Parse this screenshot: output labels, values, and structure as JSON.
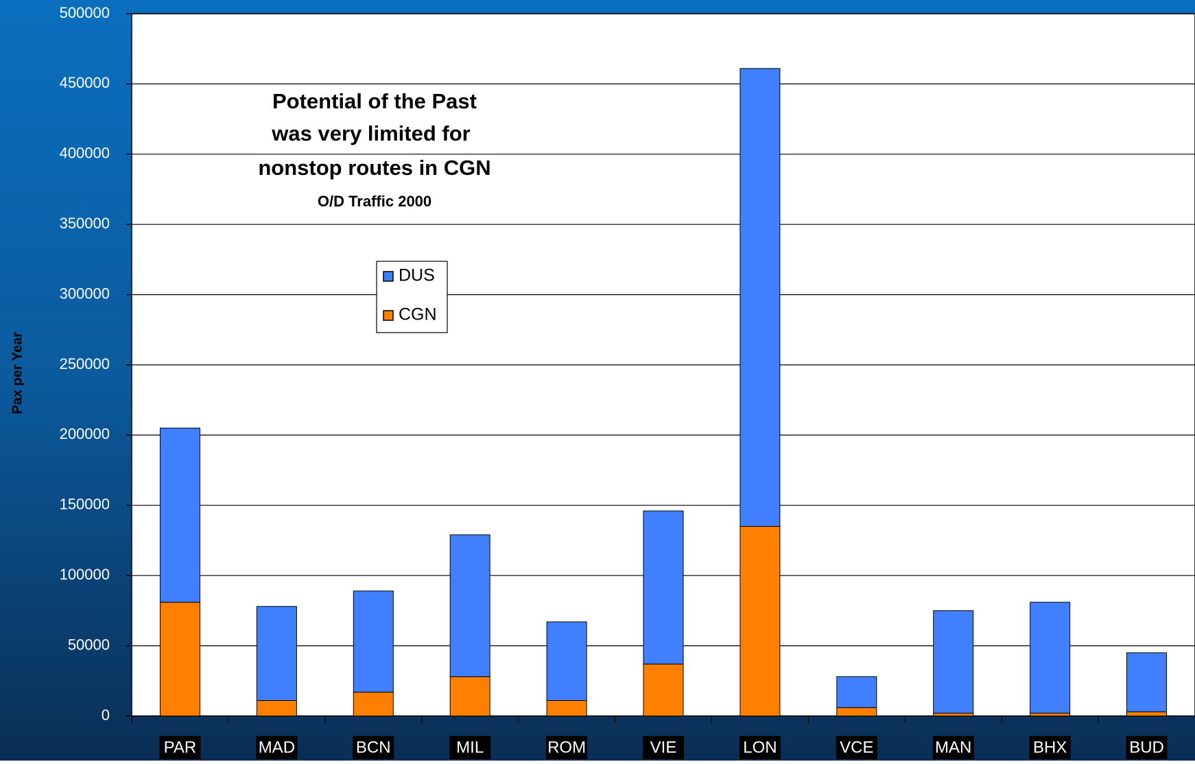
{
  "chart_data": {
    "type": "stacked_bar",
    "title": [
      "Potential of the Past",
      "was very limited for",
      "nonstop routes in CGN"
    ],
    "subtitle": "O/D Traffic 2000",
    "y_label": "Pax per Year",
    "categories": [
      "PAR",
      "MAD",
      "BCN",
      "MIL",
      "ROM",
      "VIE",
      "LON",
      "VCE",
      "MAN",
      "BHX",
      "BUD"
    ],
    "series": [
      {
        "name": "CGN",
        "color": "#ff8000",
        "values": [
          81000,
          11000,
          17000,
          28000,
          11000,
          37000,
          135000,
          6000,
          2000,
          2000,
          3000
        ]
      },
      {
        "name": "DUS",
        "color": "#4080ff",
        "values": [
          124000,
          67000,
          72000,
          101000,
          56000,
          109000,
          326000,
          22000,
          73000,
          79000,
          42000
        ]
      }
    ],
    "ylim": [
      0,
      500000
    ],
    "yticks": [
      0,
      50000,
      100000,
      150000,
      200000,
      250000,
      300000,
      350000,
      400000,
      450000,
      500000
    ],
    "grid": true
  }
}
